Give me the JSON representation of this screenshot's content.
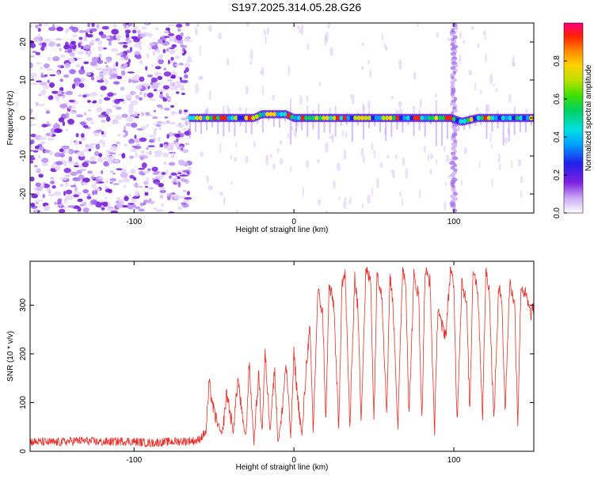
{
  "title": "S197.2025.314.05.28.G26",
  "colors": {
    "signal_red": "#e8302a",
    "noise_purple": "#7b1fe0",
    "axis": "#000000"
  },
  "chart_data": [
    {
      "type": "heatmap",
      "name": "spectrogram",
      "xlabel": "Height of straight line (km)",
      "ylabel": "Frequency (Hz)",
      "xlim": [
        -165,
        150
      ],
      "ylim": [
        -25,
        25
      ],
      "x_ticks": [
        -100,
        0,
        100
      ],
      "x_tick_labels": [
        "-100",
        "0",
        "100"
      ],
      "y_ticks": [
        -20,
        -10,
        0,
        10,
        20
      ],
      "y_tick_labels": [
        "-20",
        "-10",
        "0",
        "10",
        "20"
      ],
      "noise_region_x": [
        -165,
        -65
      ],
      "signal_band": {
        "x_start": -65,
        "x_end": 150,
        "freq_center": 0,
        "freq_center_profile": [
          {
            "x": -65,
            "f": 0
          },
          {
            "x": -25,
            "f": 0
          },
          {
            "x": -20,
            "f": 1
          },
          {
            "x": -5,
            "f": 1
          },
          {
            "x": 0,
            "f": 0
          },
          {
            "x": 98,
            "f": 0
          },
          {
            "x": 105,
            "f": -1
          },
          {
            "x": 115,
            "f": 0
          },
          {
            "x": 150,
            "f": 0
          }
        ]
      },
      "vertical_streak_x": 100,
      "colorbar": {
        "label": "Normalized spectral amplitude",
        "ticks": [
          0.0,
          0.2,
          0.4,
          0.6,
          0.8
        ],
        "tick_labels": [
          "0.0",
          "0.2",
          "0.4",
          "0.6",
          "0.8"
        ],
        "range": [
          0,
          1
        ]
      }
    },
    {
      "type": "line",
      "name": "snr",
      "xlabel": "Height of straight line (km)",
      "ylabel": "SNR (10 * v/v)",
      "xlim": [
        -165,
        150
      ],
      "ylim": [
        0,
        390
      ],
      "x_ticks": [
        -100,
        0,
        100
      ],
      "x_tick_labels": [
        "-100",
        "0",
        "100"
      ],
      "y_ticks": [
        0,
        100,
        200,
        300
      ],
      "y_tick_labels": [
        "0",
        "100",
        "200",
        "300"
      ],
      "series": [
        {
          "name": "SNR",
          "x": [
            -165,
            -150,
            -135,
            -120,
            -105,
            -90,
            -75,
            -60,
            -55,
            -53,
            -50,
            -45,
            -42,
            -38,
            -35,
            -32,
            -30,
            -28,
            -25,
            -22,
            -20,
            -18,
            -15,
            -12,
            -10,
            -8,
            -5,
            -2,
            0,
            2,
            5,
            8,
            10,
            12,
            15,
            18,
            20,
            22,
            25,
            28,
            30,
            32,
            35,
            38,
            40,
            42,
            45,
            48,
            50,
            52,
            55,
            58,
            60,
            62,
            65,
            68,
            70,
            72,
            75,
            78,
            80,
            82,
            85,
            88,
            90,
            92,
            95,
            98,
            100,
            102,
            105,
            108,
            110,
            112,
            115,
            118,
            120,
            122,
            125,
            128,
            130,
            132,
            135,
            138,
            140,
            142,
            145,
            148,
            150
          ],
          "y": [
            20,
            18,
            22,
            19,
            21,
            17,
            20,
            22,
            40,
            140,
            80,
            30,
            120,
            40,
            150,
            60,
            30,
            180,
            20,
            160,
            40,
            200,
            50,
            170,
            20,
            60,
            180,
            30,
            200,
            120,
            30,
            190,
            250,
            40,
            330,
            280,
            60,
            340,
            300,
            40,
            350,
            360,
            50,
            360,
            290,
            70,
            370,
            350,
            60,
            370,
            320,
            80,
            360,
            300,
            50,
            380,
            340,
            70,
            360,
            320,
            60,
            370,
            350,
            40,
            300,
            260,
            240,
            380,
            330,
            60,
            350,
            300,
            80,
            380,
            330,
            70,
            370,
            340,
            60,
            330,
            320,
            80,
            350,
            300,
            60,
            340,
            320,
            280,
            300
          ]
        }
      ]
    }
  ]
}
